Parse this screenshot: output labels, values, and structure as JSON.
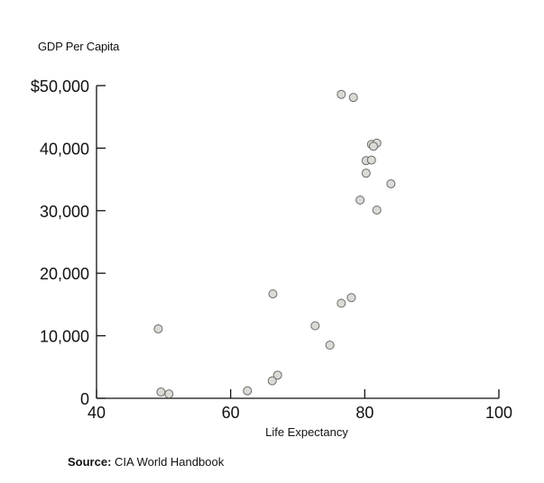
{
  "chart_data": {
    "type": "scatter",
    "title": "",
    "ylabel": "GDP Per Capita",
    "xlabel": "Life Expectancy",
    "xlim": [
      40,
      100
    ],
    "ylim": [
      0,
      50000
    ],
    "xticks": [
      40,
      60,
      80,
      100
    ],
    "yticks": [
      0,
      10000,
      20000,
      30000,
      40000,
      50000
    ],
    "xtick_labels": [
      "40",
      "60",
      "80",
      "100"
    ],
    "ytick_labels": [
      "0",
      "10,000",
      "20,000",
      "30,000",
      "40,000",
      "$50,000"
    ],
    "grid": false,
    "series": [
      {
        "marker_fill": "#dcdad5",
        "marker_stroke": "#6b6b6b",
        "points": [
          {
            "x": 76.5,
            "y": 48600
          },
          {
            "x": 78.3,
            "y": 48100
          },
          {
            "x": 81.0,
            "y": 40600
          },
          {
            "x": 81.8,
            "y": 40800
          },
          {
            "x": 81.3,
            "y": 40300
          },
          {
            "x": 80.2,
            "y": 38000
          },
          {
            "x": 81.0,
            "y": 38100
          },
          {
            "x": 80.2,
            "y": 36000
          },
          {
            "x": 83.9,
            "y": 34300
          },
          {
            "x": 79.3,
            "y": 31700
          },
          {
            "x": 81.8,
            "y": 30100
          },
          {
            "x": 66.3,
            "y": 16700
          },
          {
            "x": 78.0,
            "y": 16100
          },
          {
            "x": 76.5,
            "y": 15200
          },
          {
            "x": 72.6,
            "y": 11600
          },
          {
            "x": 49.2,
            "y": 11100
          },
          {
            "x": 74.8,
            "y": 8500
          },
          {
            "x": 67.0,
            "y": 3700
          },
          {
            "x": 66.2,
            "y": 2800
          },
          {
            "x": 62.5,
            "y": 1200
          },
          {
            "x": 49.6,
            "y": 1000
          },
          {
            "x": 50.8,
            "y": 700
          }
        ]
      }
    ],
    "source_prefix": "Source:",
    "source_text": "CIA World Handbook"
  }
}
